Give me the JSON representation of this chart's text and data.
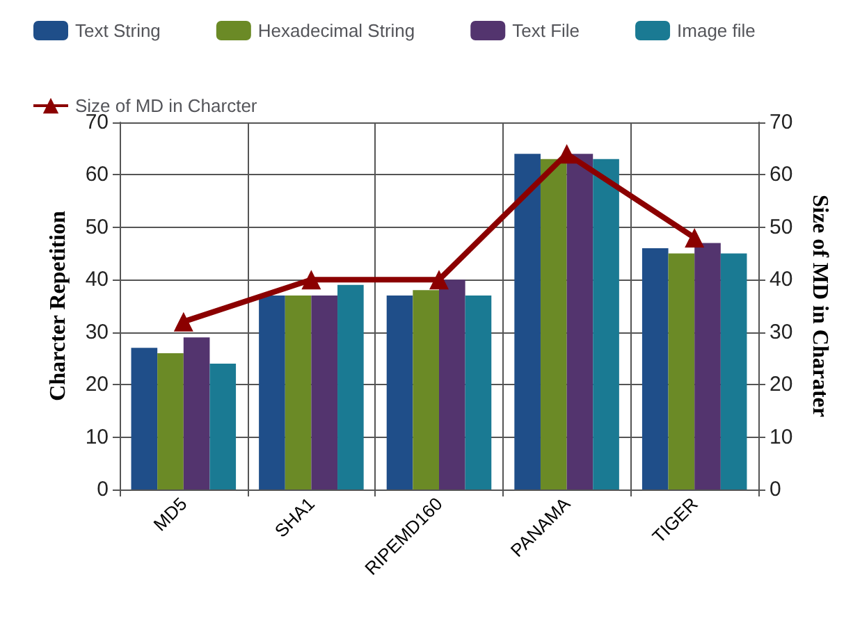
{
  "chart_data": {
    "type": "bar",
    "ylabel": "Charcter Repetition",
    "y2label": "Size of MD in Charater",
    "categories": [
      "MD5",
      "SHA1",
      "RIPEMD160",
      "PANAMA",
      "TIGER"
    ],
    "series": [
      {
        "name": "Text String",
        "color": "#1f4e89",
        "values": [
          27,
          37,
          37,
          64,
          46
        ]
      },
      {
        "name": "Hexadecimal String",
        "color": "#6b8a26",
        "values": [
          26,
          37,
          38,
          63,
          45
        ]
      },
      {
        "name": "Text File",
        "color": "#53346e",
        "values": [
          29,
          37,
          40,
          64,
          47
        ]
      },
      {
        "name": "Image file",
        "color": "#1a7a93",
        "values": [
          24,
          39,
          37,
          63,
          45
        ]
      },
      {
        "name": "Size of MD in Charcter",
        "type": "line",
        "axis": "y2",
        "color": "#8b0000",
        "marker": "triangle",
        "values": [
          32,
          40,
          40,
          64,
          48
        ]
      }
    ],
    "ylim": [
      0,
      70
    ],
    "yticks": [
      0,
      10,
      20,
      30,
      40,
      50,
      60,
      70
    ],
    "y2lim": [
      0,
      70
    ],
    "y2ticks": [
      0,
      10,
      20,
      30,
      40,
      50,
      60,
      70
    ],
    "grid": true,
    "legend": "top"
  }
}
